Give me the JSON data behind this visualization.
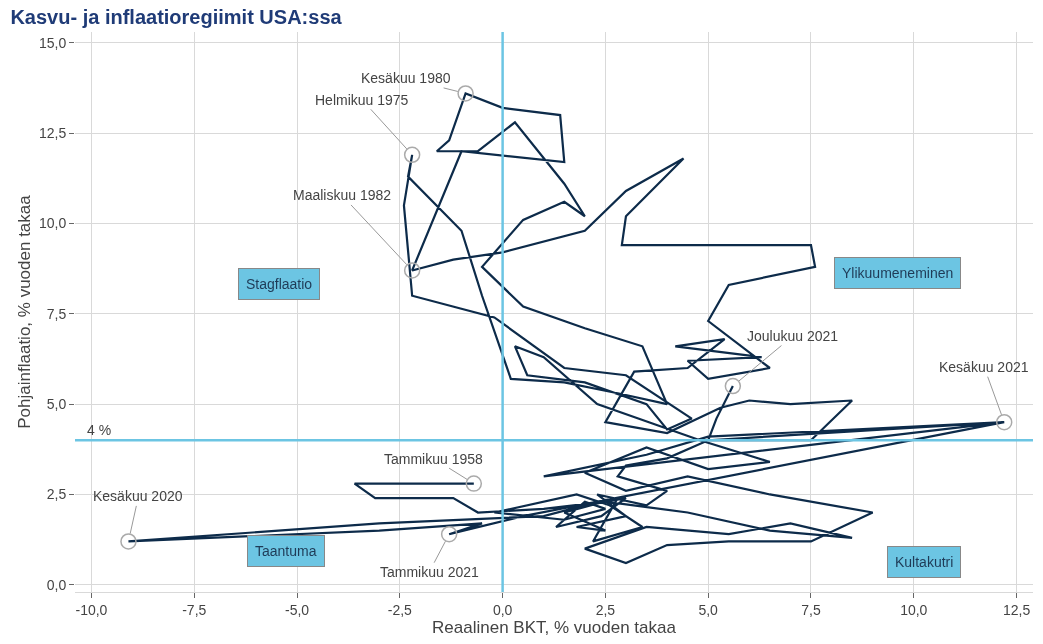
{
  "chart_data": {
    "type": "line",
    "title": "Kasvu- ja inflaatioregiimit USA:ssa",
    "xlabel": "Reaalinen BKT, % vuoden takaa",
    "ylabel": "Pohjainflaatio, % vuoden takaa",
    "series": [
      {
        "color": "#0d2b4a",
        "x": [
          -0.7,
          -3.6,
          -3.1,
          -1.2,
          -0.6,
          1.0,
          2.5,
          4.5,
          6.5,
          8.5,
          7.0,
          5.5,
          3.5,
          2.0,
          3.0,
          4.0,
          5.5,
          7.5,
          9.0,
          6.5,
          4.5,
          3.0,
          2.0,
          3.5,
          5.0,
          6.5,
          4.8,
          3.3,
          2.3,
          1.0,
          0.3,
          0.6,
          2.0,
          3.5,
          4.0,
          4.6,
          3.0,
          1.5,
          -0.2,
          -2.2,
          -2.4,
          -2.2,
          -2.3,
          -1.0,
          -0.5,
          0.2,
          1.5,
          2.8,
          4.0,
          3.4,
          2.0,
          0.5,
          -0.5,
          0.5,
          1.5,
          2.0,
          1.5,
          0.3,
          -0.6,
          -1.6,
          -1.3,
          -0.9,
          0.0,
          1.4,
          1.5,
          -1.0,
          -2.2,
          -1.2,
          0.0,
          2.0,
          3.0,
          4.4,
          3.0,
          2.9,
          7.5,
          7.6,
          5.5,
          5.0,
          6.5,
          5.0,
          4.5,
          6.3,
          4.2,
          5.4,
          4.5,
          3.2,
          2.5,
          4.0,
          5.3,
          6.0,
          7.0,
          8.5,
          7.5,
          5.0,
          4.0,
          3.0,
          2.8,
          4.0,
          3.5,
          2.3,
          3.0,
          1.8,
          2.5,
          1.5,
          2.8,
          2.2,
          3.4,
          2.6,
          1.8,
          -0.2,
          1.5,
          2.5,
          2.0,
          1.3,
          2.4,
          3.0,
          2.0,
          1.0,
          -3.0,
          -9.1,
          -3.0,
          -0.5,
          -1.3,
          0.5,
          12.2,
          1.0,
          3.5,
          5.0,
          12.2,
          5.0,
          5.2,
          5.6
        ],
        "values": [
          2.8,
          2.8,
          2.4,
          2.4,
          2.0,
          2.1,
          2.3,
          2.0,
          1.5,
          1.3,
          1.7,
          1.4,
          1.6,
          1.0,
          0.6,
          1.1,
          1.2,
          1.2,
          2.0,
          2.5,
          3.0,
          2.6,
          3.1,
          3.8,
          3.2,
          3.4,
          4.0,
          4.6,
          5.0,
          6.3,
          6.6,
          5.8,
          5.6,
          5.0,
          4.3,
          4.6,
          5.8,
          6.0,
          7.4,
          8.0,
          10.5,
          11.9,
          11.3,
          9.8,
          8.0,
          5.7,
          5.6,
          5.3,
          5.0,
          6.6,
          7.1,
          7.7,
          8.8,
          10.1,
          10.6,
          10.2,
          11.1,
          12.8,
          12.0,
          12.0,
          12.3,
          13.6,
          13.2,
          13.0,
          11.7,
          12.0,
          8.7,
          9.0,
          9.2,
          9.8,
          10.9,
          11.8,
          10.2,
          9.4,
          9.4,
          8.8,
          8.3,
          7.3,
          6.0,
          5.7,
          6.2,
          6.3,
          6.6,
          6.8,
          6.0,
          5.9,
          4.5,
          4.2,
          4.9,
          5.1,
          5.0,
          5.1,
          4.0,
          4.0,
          3.5,
          3.3,
          3.0,
          2.6,
          2.2,
          2.5,
          1.9,
          1.6,
          1.5,
          2.0,
          2.4,
          1.2,
          1.6,
          2.2,
          2.5,
          2.0,
          1.8,
          2.1,
          2.3,
          1.6,
          1.9,
          2.4,
          2.2,
          1.9,
          1.7,
          1.2,
          1.5,
          1.7,
          1.4,
          1.9,
          4.5,
          3.0,
          3.6,
          4.1,
          4.5,
          4.0,
          4.6,
          5.5
        ]
      }
    ],
    "xlim": [
      -10.4,
      12.9
    ],
    "ylim": [
      -0.2,
      15.3
    ],
    "xticks": [
      {
        "value": -10,
        "label": "-10,0"
      },
      {
        "value": -7.5,
        "label": "-7,5"
      },
      {
        "value": -5,
        "label": "-5,0"
      },
      {
        "value": -2.5,
        "label": "-2,5"
      },
      {
        "value": 0,
        "label": "0,0"
      },
      {
        "value": 2.5,
        "label": "2,5"
      },
      {
        "value": 5,
        "label": "5,0"
      },
      {
        "value": 7.5,
        "label": "7,5"
      },
      {
        "value": 10,
        "label": "10,0"
      },
      {
        "value": 12.5,
        "label": "12,5"
      }
    ],
    "yticks": [
      {
        "value": 0,
        "label": "0,0"
      },
      {
        "value": 2.5,
        "label": "2,5"
      },
      {
        "value": 5,
        "label": "5,0"
      },
      {
        "value": 7.5,
        "label": "7,5"
      },
      {
        "value": 10,
        "label": "10,0"
      },
      {
        "value": 12.5,
        "label": "12,5"
      },
      {
        "value": 15,
        "label": "15,0"
      }
    ],
    "ref_lines": [
      {
        "axis": "y",
        "value": 4,
        "label": "4 %",
        "color": "#6cc5e3"
      },
      {
        "axis": "x",
        "value": 0,
        "color": "#6cc5e3"
      }
    ],
    "annotations": [
      {
        "text": "Kesäkuu 1980",
        "x": -0.9,
        "y": 13.6
      },
      {
        "text": "Helmikuu 1975",
        "x": -2.2,
        "y": 11.9
      },
      {
        "text": "Maaliskuu 1982",
        "x": -2.2,
        "y": 8.7
      },
      {
        "text": "Tammikuu 1958",
        "x": -0.7,
        "y": 2.8
      },
      {
        "text": "Kesäkuu 2020",
        "x": -9.1,
        "y": 1.2
      },
      {
        "text": "Tammikuu 2021",
        "x": -1.3,
        "y": 1.4
      },
      {
        "text": "Joulukuu 2021",
        "x": 5.6,
        "y": 5.5
      },
      {
        "text": "Kesäkuu 2021",
        "x": 12.2,
        "y": 4.5
      },
      "Stagflaatio",
      "Ylikuumeneminen",
      "Taantuma",
      "Kultakutri"
    ],
    "grid": true,
    "marker": "none",
    "line_style": "solid"
  }
}
